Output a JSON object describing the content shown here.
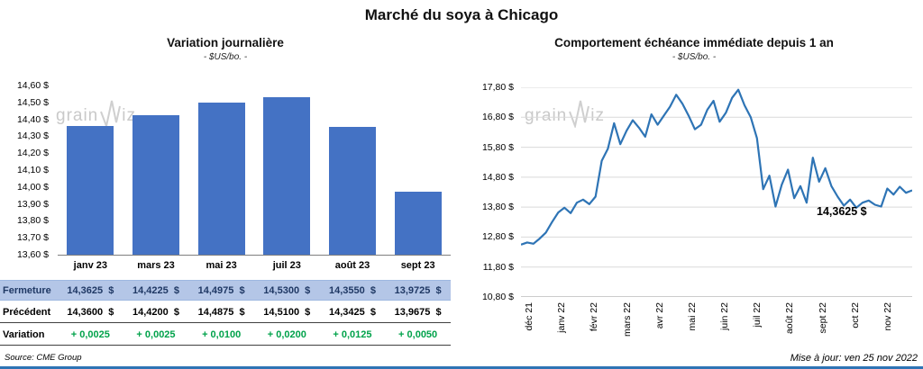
{
  "page": {
    "title": "Marché du soya à Chicago",
    "source": "Source: CME Group",
    "updated": "Mise à jour: ven 25 nov 2022",
    "watermark": {
      "prefix": "grain",
      "suffix": "iz"
    }
  },
  "colors": {
    "bar": "#4472C4",
    "line": "#2E74B5",
    "grid": "#D9D9D9",
    "axis": "#9a9a9a",
    "positive": "#00A24A",
    "table_highlight_bg": "#B4C6E7",
    "table_highlight_text": "#1F3864",
    "accent_bottom_bar": "#2E74B5",
    "watermark": "#C9C9C9"
  },
  "chart_data": [
    {
      "type": "bar",
      "title": "Variation  journalière",
      "subtitle": "- $US/bo. -",
      "categories": [
        "janv 23",
        "mars 23",
        "mai 23",
        "juil 23",
        "août 23",
        "sept 23"
      ],
      "values": [
        14.3625,
        14.4225,
        14.4975,
        14.53,
        14.355,
        13.9725
      ],
      "ylim": [
        13.6,
        14.6
      ],
      "ytick_step": 0.1,
      "ytick_labels": [
        "14,60 $",
        "14,50 $",
        "14,40 $",
        "14,30 $",
        "14,20 $",
        "14,10 $",
        "14,00 $",
        "13,90 $",
        "13,80 $",
        "13,70 $",
        "13,60 $"
      ],
      "grid": false,
      "table": {
        "rows": [
          {
            "label": "Fermeture",
            "values": [
              "14,3625  $",
              "14,4225  $",
              "14,4975  $",
              "14,5300  $",
              "14,3550  $",
              "13,9725  $"
            ]
          },
          {
            "label": "Précédent",
            "values": [
              "14,3600  $",
              "14,4200  $",
              "14,4875  $",
              "14,5100  $",
              "14,3425  $",
              "13,9675  $"
            ]
          },
          {
            "label": "Variation",
            "values": [
              "+ 0,0025",
              "+ 0,0025",
              "+ 0,0100",
              "+ 0,0200",
              "+ 0,0125",
              "+ 0,0050"
            ]
          }
        ]
      }
    },
    {
      "type": "line",
      "title": "Comportement  échéance  immédiate  depuis 1 an",
      "subtitle": "- $US/bo. -",
      "x_labels": [
        "déc 21",
        "janv 22",
        "févr 22",
        "mars 22",
        "avr 22",
        "mai 22",
        "juin 22",
        "juil 22",
        "août 22",
        "sept 22",
        "oct 22",
        "nov 22"
      ],
      "ylim": [
        10.8,
        17.8
      ],
      "ytick_step": 1.0,
      "ytick_labels": [
        "17,80 $",
        "16,80 $",
        "15,80 $",
        "14,80 $",
        "13,80 $",
        "12,80 $",
        "11,80 $",
        "10,80 $"
      ],
      "grid": true,
      "annotation": "14,3625 $",
      "values": [
        12.55,
        12.62,
        12.58,
        12.75,
        12.95,
        13.3,
        13.62,
        13.78,
        13.6,
        13.95,
        14.05,
        13.9,
        14.15,
        15.35,
        15.75,
        16.6,
        15.9,
        16.35,
        16.7,
        16.45,
        16.15,
        16.9,
        16.55,
        16.85,
        17.15,
        17.55,
        17.25,
        16.85,
        16.4,
        16.55,
        17.05,
        17.35,
        16.65,
        16.95,
        17.45,
        17.72,
        17.2,
        16.8,
        16.1,
        14.4,
        14.85,
        13.82,
        14.55,
        15.05,
        14.1,
        14.5,
        13.95,
        15.45,
        14.65,
        15.1,
        14.5,
        14.15,
        13.85,
        14.05,
        13.78,
        13.95,
        14.02,
        13.88,
        13.82,
        14.42,
        14.22,
        14.48,
        14.28,
        14.36
      ]
    }
  ]
}
